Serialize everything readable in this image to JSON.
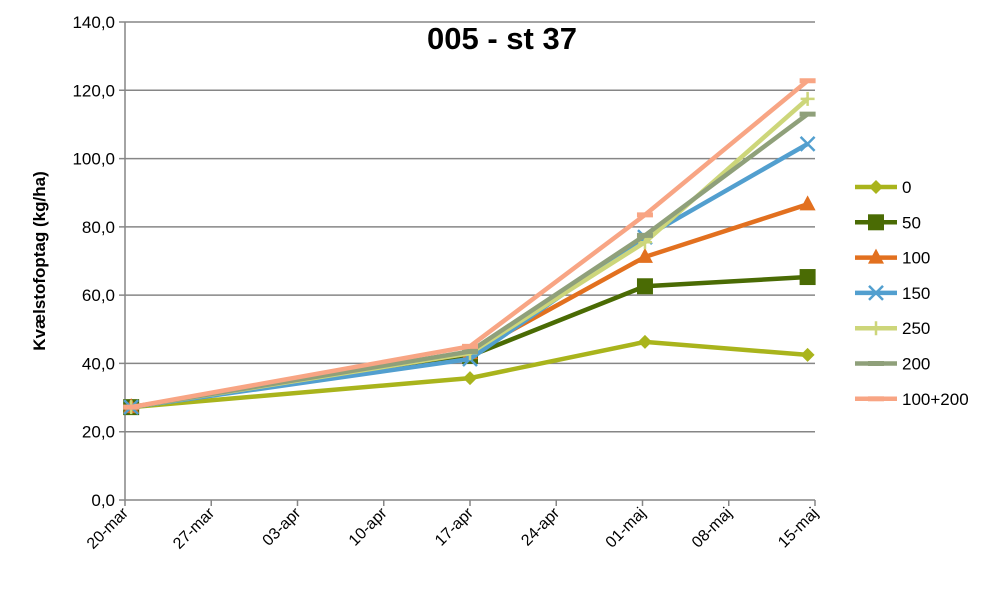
{
  "chart_data": {
    "type": "line",
    "title": "005 - st 37",
    "xlabel": "",
    "ylabel": "Kvælstofoptag (kg/ha)",
    "ylim": [
      0,
      140
    ],
    "yticks": [
      "0,0",
      "20,0",
      "40,0",
      "60,0",
      "80,0",
      "100,0",
      "120,0",
      "140,0"
    ],
    "xtick_labels": [
      "20-mar",
      "27-mar",
      "03-apr",
      "10-apr",
      "17-apr",
      "24-apr",
      "01-maj",
      "08-maj",
      "15-maj"
    ],
    "x_days_from_20mar": [
      0.5,
      28,
      42.2,
      55.4
    ],
    "grid": true,
    "legend_position": "right",
    "series": [
      {
        "name": "0",
        "color": "#a9b41c",
        "marker": "diamond",
        "values": [
          27.2,
          35.7,
          46.3,
          42.5
        ]
      },
      {
        "name": "50",
        "color": "#4a6b04",
        "marker": "square",
        "values": [
          27.2,
          42.2,
          62.6,
          65.3
        ]
      },
      {
        "name": "100",
        "color": "#e2701f",
        "marker": "triangle",
        "values": [
          27.2,
          43.0,
          71.2,
          86.6
        ]
      },
      {
        "name": "150",
        "color": "#529fcf",
        "marker": "x",
        "values": [
          27.2,
          41.3,
          77.0,
          104.3
        ]
      },
      {
        "name": "250",
        "color": "#cdd67a",
        "marker": "plus",
        "values": [
          27.2,
          43.0,
          75.5,
          117.5
        ]
      },
      {
        "name": "200",
        "color": "#8fa07a",
        "marker": "dash",
        "values": [
          27.2,
          43.5,
          77.5,
          113.0
        ]
      },
      {
        "name": "100+200",
        "color": "#f8a584",
        "marker": "dash",
        "values": [
          27.2,
          45.0,
          83.5,
          122.8
        ]
      }
    ]
  }
}
